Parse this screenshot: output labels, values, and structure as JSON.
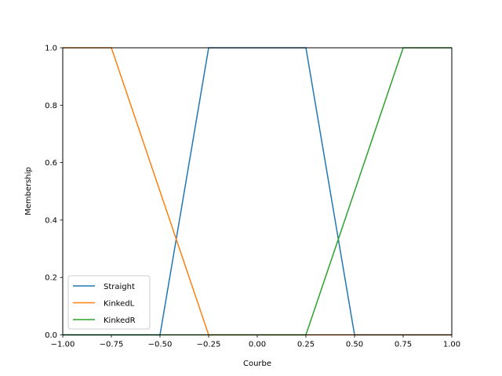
{
  "chart_data": {
    "type": "line",
    "title": "",
    "xlabel": "Courbe",
    "ylabel": "Membership",
    "xlim": [
      -1.0,
      1.0
    ],
    "ylim": [
      0.0,
      1.0
    ],
    "xticks": [
      "−1.00",
      "−0.75",
      "−0.50",
      "−0.25",
      "0.00",
      "0.25",
      "0.50",
      "0.75",
      "1.00"
    ],
    "xtick_values": [
      -1.0,
      -0.75,
      -0.5,
      -0.25,
      0.0,
      0.25,
      0.5,
      0.75,
      1.0
    ],
    "yticks": [
      "0.0",
      "0.2",
      "0.4",
      "0.6",
      "0.8",
      "1.0"
    ],
    "ytick_values": [
      0.0,
      0.2,
      0.4,
      0.6,
      0.8,
      1.0
    ],
    "grid": false,
    "legend": "lower-left",
    "series": [
      {
        "name": "Straight",
        "color": "#1f77b4",
        "x": [
          -1.0,
          -0.5,
          -0.25,
          0.25,
          0.5,
          1.0
        ],
        "y": [
          0.0,
          0.0,
          1.0,
          1.0,
          0.0,
          0.0
        ]
      },
      {
        "name": "KinkedL",
        "color": "#ff7f0e",
        "x": [
          -1.0,
          -0.75,
          -0.25,
          1.0
        ],
        "y": [
          1.0,
          1.0,
          0.0,
          0.0
        ]
      },
      {
        "name": "KinkedR",
        "color": "#2ca02c",
        "x": [
          -1.0,
          0.25,
          0.75,
          1.0
        ],
        "y": [
          0.0,
          0.0,
          1.0,
          1.0
        ]
      }
    ]
  }
}
